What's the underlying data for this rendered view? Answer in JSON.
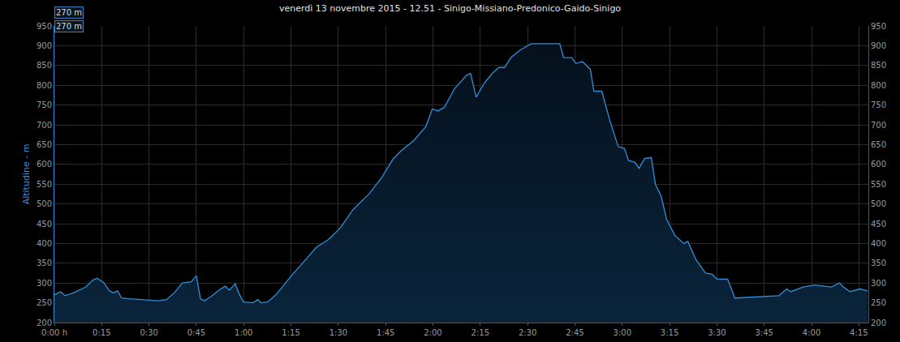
{
  "chart_data": {
    "type": "area",
    "title": "venerdì 13 novembre 2015 - 12.51 - Sinigo-Missiano-Predonico-Gaido-Sinigo",
    "y_label": "Altitudine - m",
    "annotations": [
      "270 m",
      "270 m"
    ],
    "color": "#2f8fd8",
    "grid": true,
    "x": [
      0,
      2,
      3.3,
      6,
      10,
      12.3,
      13.6,
      15.7,
      17.5,
      18.8,
      20,
      21.3,
      23.9,
      27.8,
      32.9,
      35.5,
      38,
      40.6,
      43.4,
      45,
      46.3,
      47.6,
      50,
      52.7,
      54.2,
      55.5,
      57.3,
      58.6,
      59.9,
      63,
      64.5,
      65.5,
      67.6,
      70.2,
      75.3,
      79.2,
      83,
      86.9,
      90.7,
      94.6,
      99.7,
      103.6,
      107.5,
      110,
      113.9,
      117.7,
      119.8,
      121.6,
      123.7,
      126.7,
      130.6,
      131.9,
      133.7,
      136.2,
      138.8,
      140.9,
      142.7,
      144.7,
      147.8,
      151.2,
      160.2,
      161.4,
      164,
      165.3,
      167.4,
      169.9,
      171,
      173.5,
      176.1,
      178.7,
      180.7,
      182,
      184,
      185.3,
      187.1,
      189.2,
      190.5,
      192.3,
      194.1,
      196.7,
      199.5,
      200.8,
      203.3,
      206.4,
      208.5,
      210,
      213.4,
      215.7,
      223.1,
      229.6,
      232.1,
      233.4,
      237.3,
      241.1,
      246.3,
      248.8,
      250.1,
      252.2,
      255.3,
      256.6,
      257.8
    ],
    "values": [
      270,
      278,
      268,
      275,
      290,
      308,
      312,
      300,
      280,
      275,
      280,
      262,
      260,
      258,
      255,
      258,
      275,
      300,
      303,
      318,
      260,
      255,
      268,
      285,
      292,
      282,
      298,
      272,
      252,
      250,
      258,
      250,
      252,
      270,
      320,
      355,
      390,
      410,
      440,
      485,
      525,
      565,
      615,
      635,
      660,
      695,
      740,
      735,
      745,
      790,
      825,
      830,
      770,
      805,
      830,
      845,
      845,
      870,
      890,
      905,
      905,
      870,
      870,
      855,
      860,
      840,
      785,
      785,
      710,
      645,
      640,
      610,
      605,
      590,
      615,
      617,
      550,
      520,
      460,
      420,
      400,
      405,
      360,
      325,
      322,
      310,
      310,
      262,
      265,
      268,
      285,
      278,
      290,
      295,
      290,
      300,
      290,
      278,
      285,
      282,
      280
    ],
    "xlim": [
      0,
      258
    ],
    "xticks": [
      {
        "value": 0,
        "label": "0:00 h"
      },
      {
        "value": 15,
        "label": "0:15"
      },
      {
        "value": 30,
        "label": "0:30"
      },
      {
        "value": 45,
        "label": "0:45"
      },
      {
        "value": 60,
        "label": "1:00"
      },
      {
        "value": 75,
        "label": "1:15"
      },
      {
        "value": 90,
        "label": "1:30"
      },
      {
        "value": 105,
        "label": "1:45"
      },
      {
        "value": 120,
        "label": "2:00"
      },
      {
        "value": 135,
        "label": "2:15"
      },
      {
        "value": 150,
        "label": "2:30"
      },
      {
        "value": 165,
        "label": "2:45"
      },
      {
        "value": 180,
        "label": "3:00"
      },
      {
        "value": 195,
        "label": "3:15"
      },
      {
        "value": 210,
        "label": "3:30"
      },
      {
        "value": 225,
        "label": "3:45"
      },
      {
        "value": 240,
        "label": "4:00"
      },
      {
        "value": 255,
        "label": "4:15"
      }
    ],
    "ylim": [
      200,
      950
    ],
    "yticks": [
      200,
      250,
      300,
      350,
      400,
      450,
      500,
      550,
      600,
      650,
      700,
      750,
      800,
      850,
      900,
      950
    ]
  }
}
